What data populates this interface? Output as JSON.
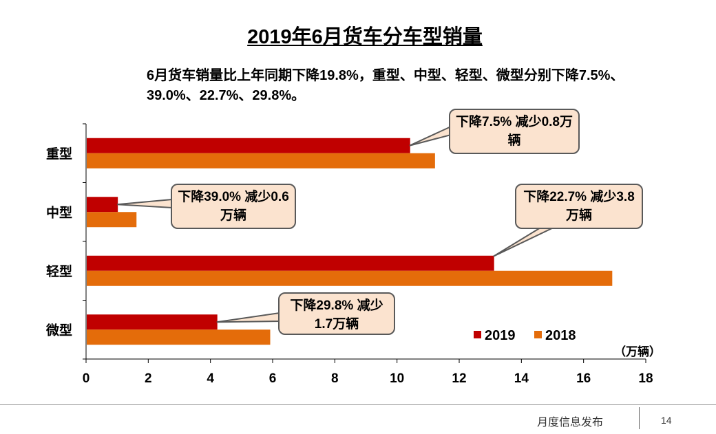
{
  "title": "2019年6月货车分车型销量",
  "summary": "6月货车销量比上年同期下降19.8%，重型、中型、轻型、微型分别下降7.5%、39.0%、22.7%、29.8%。",
  "chart_data": {
    "type": "bar",
    "orientation": "horizontal",
    "categories": [
      "重型",
      "中型",
      "轻型",
      "微型"
    ],
    "series": [
      {
        "name": "2019",
        "color": "#c00000",
        "values": [
          10.4,
          1.0,
          13.1,
          4.2
        ]
      },
      {
        "name": "2018",
        "color": "#e46c0a",
        "values": [
          11.2,
          1.6,
          16.9,
          5.9
        ]
      }
    ],
    "xlim": [
      0,
      18
    ],
    "xticks": [
      "0",
      "2",
      "4",
      "6",
      "8",
      "10",
      "12",
      "14",
      "16",
      "18"
    ],
    "unit_label": "（万辆）",
    "legend_position": "bottom-right",
    "annotations": [
      "下降7.5% 减少0.8万辆",
      "下降39.0% 减少0.6万辆",
      "下降22.7% 减少3.8万辆",
      "下降29.8% 减少1.7万辆"
    ]
  },
  "footer": {
    "text": "月度信息发布",
    "page": "14"
  }
}
